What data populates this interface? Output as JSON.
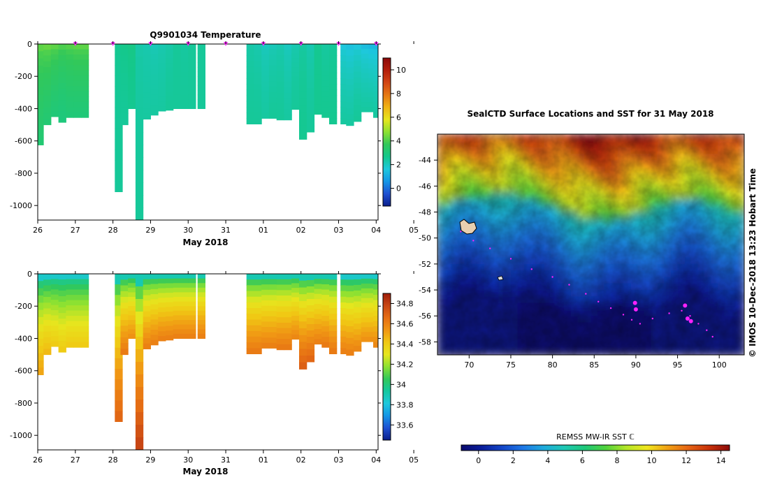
{
  "colors": {
    "temp_scale": [
      "#0a1e8c",
      "#1e50d2",
      "#1496e6",
      "#1ec8dc",
      "#14c88c",
      "#32c85a",
      "#8ce132",
      "#e6e61e",
      "#f0b414",
      "#e67814",
      "#d24614",
      "#b41e0a",
      "#8c0a0a"
    ],
    "sal_scale": [
      "#0a1e8c",
      "#1e50d2",
      "#1496e6",
      "#1ec8dc",
      "#14c8a0",
      "#32c85a",
      "#8ce132",
      "#e6e61e",
      "#f0c814",
      "#f09614",
      "#e66e14",
      "#c84614",
      "#a01e0a"
    ],
    "sst_scale": [
      "#0a0a6e",
      "#0a1e9b",
      "#1446c8",
      "#1e78e6",
      "#1eaadc",
      "#1ec8b4",
      "#1ec878",
      "#50d23c",
      "#b4e628",
      "#f0e61e",
      "#f0a014",
      "#e66414",
      "#c8320a",
      "#8c0a0a"
    ],
    "marker": "#ff22ff"
  },
  "chart_data": [
    {
      "type": "heatmap",
      "id": "temperature",
      "title": "Q9901034  Temperature",
      "xlabel": "May 2018",
      "x_ticks": [
        "26",
        "27",
        "28",
        "29",
        "30",
        "31",
        "01",
        "02",
        "03",
        "04",
        "05"
      ],
      "x_range": [
        0,
        9.05
      ],
      "y_ticks": [
        "0",
        "-200",
        "-400",
        "-600",
        "-800",
        "-1000"
      ],
      "y_tick_values": [
        0,
        -200,
        -400,
        -600,
        -800,
        -1000
      ],
      "ylim": [
        -1090,
        0
      ],
      "colorbar_ticks": [
        "0",
        "2",
        "4",
        "6",
        "8",
        "10"
      ],
      "colorbar_tick_values": [
        0,
        2,
        4,
        6,
        8,
        10
      ],
      "colorbar_range": [
        -1.5,
        11
      ],
      "profile_days": [
        0.05,
        0.25,
        0.45,
        0.65,
        0.85,
        1.05,
        1.25,
        2.15,
        2.3,
        2.5,
        2.7,
        2.9,
        3.1,
        3.3,
        3.5,
        3.7,
        3.9,
        4.1,
        4.35,
        5.65,
        5.85,
        6.05,
        6.25,
        6.45,
        6.65,
        6.85,
        7.05,
        7.25,
        7.45,
        7.65,
        7.85,
        8.15,
        8.3,
        8.5,
        8.7,
        8.9,
        9.02
      ],
      "profile_depths": [
        625,
        500,
        450,
        485,
        455,
        455,
        455,
        915,
        500,
        400,
        1090,
        465,
        440,
        415,
        410,
        400,
        400,
        400,
        400,
        495,
        495,
        460,
        460,
        470,
        470,
        405,
        590,
        545,
        435,
        455,
        495,
        495,
        505,
        480,
        420,
        420,
        455
      ],
      "profile_surface_values": [
        4.2,
        4.3,
        4.2,
        4.0,
        4.1,
        4.2,
        4.2,
        2.6,
        2.7,
        2.8,
        2.3,
        2.2,
        2.1,
        2.2,
        2.3,
        2.5,
        2.4,
        2.5,
        2.5,
        2.3,
        2.2,
        2.0,
        2.1,
        2.2,
        2.0,
        2.2,
        2.4,
        2.2,
        2.6,
        2.4,
        2.5,
        1.6,
        1.5,
        1.6,
        1.4,
        1.3,
        1.3
      ],
      "profile_deep_values": [
        3.2,
        3.2,
        3.1,
        3.0,
        3.1,
        3.1,
        3.1,
        2.5,
        2.5,
        2.6,
        2.5,
        2.4,
        2.4,
        2.4,
        2.5,
        2.5,
        2.5,
        2.5,
        2.5,
        2.5,
        2.5,
        2.4,
        2.5,
        2.5,
        2.4,
        2.5,
        2.6,
        2.5,
        2.6,
        2.6,
        2.6,
        2.4,
        2.4,
        2.5,
        2.4,
        2.4,
        2.4
      ],
      "marker_days": [
        1,
        2,
        3,
        4,
        5,
        6,
        7,
        8,
        9
      ]
    },
    {
      "type": "heatmap",
      "id": "salinity",
      "title": "",
      "xlabel": "May 2018",
      "x_ticks": [
        "26",
        "27",
        "28",
        "29",
        "30",
        "31",
        "01",
        "02",
        "03",
        "04",
        "05"
      ],
      "x_range": [
        0,
        9.05
      ],
      "y_ticks": [
        "0",
        "-200",
        "-400",
        "-600",
        "-800",
        "-1000"
      ],
      "y_tick_values": [
        0,
        -200,
        -400,
        -600,
        -800,
        -1000
      ],
      "ylim": [
        -1090,
        0
      ],
      "colorbar_ticks": [
        "33.6",
        "33.8",
        "34",
        "34.2",
        "34.4",
        "34.6",
        "34.8"
      ],
      "colorbar_tick_values": [
        33.6,
        33.8,
        34.0,
        34.2,
        34.4,
        34.6,
        34.8
      ],
      "colorbar_range": [
        33.45,
        34.9
      ],
      "profile_days": [
        0.05,
        0.25,
        0.45,
        0.65,
        0.85,
        1.05,
        1.25,
        2.15,
        2.3,
        2.5,
        2.7,
        2.9,
        3.1,
        3.3,
        3.5,
        3.7,
        3.9,
        4.1,
        4.35,
        5.65,
        5.85,
        6.05,
        6.25,
        6.45,
        6.65,
        6.85,
        7.05,
        7.25,
        7.45,
        7.65,
        7.85,
        8.15,
        8.3,
        8.5,
        8.7,
        8.9,
        9.02
      ],
      "profile_depths": [
        625,
        500,
        450,
        485,
        455,
        455,
        455,
        915,
        500,
        400,
        1090,
        465,
        440,
        415,
        410,
        400,
        400,
        400,
        400,
        495,
        495,
        460,
        460,
        470,
        470,
        405,
        590,
        545,
        435,
        455,
        495,
        495,
        505,
        480,
        420,
        420,
        455
      ],
      "profile_surface_values": [
        33.85,
        33.85,
        33.85,
        33.85,
        33.85,
        33.85,
        33.85,
        33.9,
        33.9,
        33.9,
        33.9,
        33.9,
        33.9,
        33.9,
        33.9,
        33.9,
        33.9,
        33.9,
        33.9,
        33.9,
        33.9,
        33.9,
        33.9,
        33.9,
        33.9,
        33.9,
        33.9,
        33.9,
        33.9,
        33.9,
        33.9,
        33.85,
        33.85,
        33.85,
        33.85,
        33.85,
        33.85
      ],
      "profile_deep_values": [
        34.5,
        34.45,
        34.4,
        34.4,
        34.4,
        34.4,
        34.4,
        34.68,
        34.62,
        34.55,
        34.78,
        34.6,
        34.6,
        34.6,
        34.6,
        34.6,
        34.6,
        34.6,
        34.6,
        34.62,
        34.62,
        34.6,
        34.6,
        34.62,
        34.62,
        34.58,
        34.7,
        34.68,
        34.6,
        34.62,
        34.62,
        34.6,
        34.6,
        34.58,
        34.55,
        34.55,
        34.58
      ]
    },
    {
      "type": "heatmap",
      "id": "sst_map",
      "title": "SealCTD Surface Locations and SST for 31 May 2018",
      "x_ticks": [
        "70",
        "75",
        "80",
        "85",
        "90",
        "95",
        "100"
      ],
      "x_tick_values": [
        70,
        75,
        80,
        85,
        90,
        95,
        100
      ],
      "xlim": [
        66.2,
        103.0
      ],
      "y_ticks": [
        "-44",
        "-46",
        "-48",
        "-50",
        "-52",
        "-54",
        "-56",
        "-58"
      ],
      "y_tick_values": [
        -44,
        -46,
        -48,
        -50,
        -52,
        -54,
        -56,
        -58
      ],
      "ylim": [
        -59.0,
        -42.0
      ],
      "colorbar_label": "REMSS MW-IR SST ℂ",
      "colorbar_ticks": [
        "0",
        "2",
        "4",
        "6",
        "8",
        "10",
        "12",
        "14"
      ],
      "colorbar_tick_values": [
        0,
        2,
        4,
        6,
        8,
        10,
        12,
        14
      ],
      "colorbar_range": [
        -1.0,
        14.5
      ],
      "front_lat": [
        -47.5,
        -47.0,
        -46.8,
        -46.5,
        -47.2,
        -47.8,
        -48.6,
        -48.8,
        -48.2,
        -47.5,
        -47.0,
        -47.4,
        -47.8,
        -48.0
      ],
      "front_lon": [
        66.2,
        69,
        72,
        75,
        78,
        81,
        84,
        87,
        90,
        93,
        96,
        99,
        101,
        103
      ],
      "track_lon": [
        69.0,
        70.5,
        72.5,
        75.0,
        77.5,
        80.0,
        82.0,
        84.0,
        85.5,
        87.0,
        88.5,
        89.5,
        90.5,
        92.0,
        94.0,
        95.5,
        96.5,
        97.5,
        98.5,
        99.2
      ],
      "track_lat": [
        -49.5,
        -50.2,
        -50.8,
        -51.6,
        -52.4,
        -53.0,
        -53.6,
        -54.3,
        -54.9,
        -55.4,
        -55.9,
        -56.3,
        -56.6,
        -56.2,
        -55.8,
        -55.6,
        -56.0,
        -56.6,
        -57.1,
        -57.6
      ],
      "cluster_lon": [
        95.9,
        96.2,
        96.6,
        90.0,
        89.9
      ],
      "cluster_lat": [
        -55.2,
        -56.2,
        -56.4,
        -55.5,
        -55.0
      ]
    }
  ],
  "side_label": "©  IMOS 10-Dec-2018 13:23 Hobart Time"
}
